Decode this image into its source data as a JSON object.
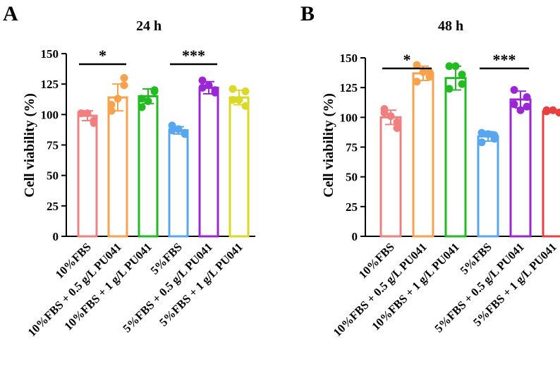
{
  "figure": {
    "background": "#ffffff",
    "axis_color": "#000000"
  },
  "chart_data": [
    {
      "type": "bar",
      "panel_label": "A",
      "title": "24 h",
      "xlabel": "",
      "ylabel": "Cell viability (%)",
      "ylim": [
        0,
        150
      ],
      "yticks": [
        0,
        25,
        50,
        75,
        100,
        125,
        150
      ],
      "error_bars": "SD",
      "categories": [
        "10%FBS",
        "10%FBS + 0.5 g/L PU041",
        "10%FBS + 1 g/L PU041",
        "5%FBS",
        "5%FBS + 0.5 g/L PU041",
        "5%FBS + 1 g/L PU041"
      ],
      "colors": [
        "#f08080",
        "#f9a24c",
        "#22bb22",
        "#58a6f0",
        "#9b26d6",
        "#d9d926"
      ],
      "values": [
        99,
        114,
        115,
        87,
        122,
        114
      ],
      "errors": [
        4,
        11,
        6,
        3,
        5,
        6
      ],
      "points": [
        [
          101,
          95,
          101,
          93,
          101
        ],
        [
          108,
          130,
          103,
          124,
          113
        ],
        [
          113,
          120,
          106,
          119,
          111
        ],
        [
          91,
          85,
          87,
          84,
          88
        ],
        [
          128,
          118,
          122,
          120,
          124
        ],
        [
          121,
          107,
          112,
          119,
          112
        ]
      ],
      "significance": [
        {
          "from": 0,
          "to": 1,
          "label": "*"
        },
        {
          "from": 3,
          "to": 4,
          "label": "***"
        }
      ]
    },
    {
      "type": "bar",
      "panel_label": "B",
      "title": "48 h",
      "xlabel": "",
      "ylabel": "Cell viability (%)",
      "ylim": [
        0,
        150
      ],
      "yticks": [
        0,
        25,
        50,
        75,
        100,
        125,
        150
      ],
      "error_bars": "SD",
      "categories": [
        "10%FBS",
        "10%FBS + 0.5 g/L PU041",
        "10%FBS + 1 g/L PU041",
        "5%FBS",
        "5%FBS + 0.5 g/L PU041",
        "5%FBS + 1 g/L PU041"
      ],
      "colors": [
        "#f08080",
        "#f9a24c",
        "#22bb22",
        "#58a6f0",
        "#9b26d6",
        "#e84040"
      ],
      "values": [
        100,
        137,
        133,
        84,
        115,
        105
      ],
      "errors": [
        6,
        6,
        10,
        4,
        7,
        1
      ],
      "points": [
        [
          107,
          96,
          104,
          91,
          101
        ],
        [
          144,
          138,
          130,
          134,
          138
        ],
        [
          143,
          128,
          124,
          136,
          143
        ],
        [
          87,
          82,
          79,
          85,
          86
        ],
        [
          123,
          109,
          111,
          117,
          106
        ],
        [
          106,
          104,
          105,
          104,
          106
        ]
      ],
      "significance": [
        {
          "from": 0,
          "to": 1,
          "label": "*"
        },
        {
          "from": 3,
          "to": 4,
          "label": "***"
        }
      ]
    }
  ]
}
